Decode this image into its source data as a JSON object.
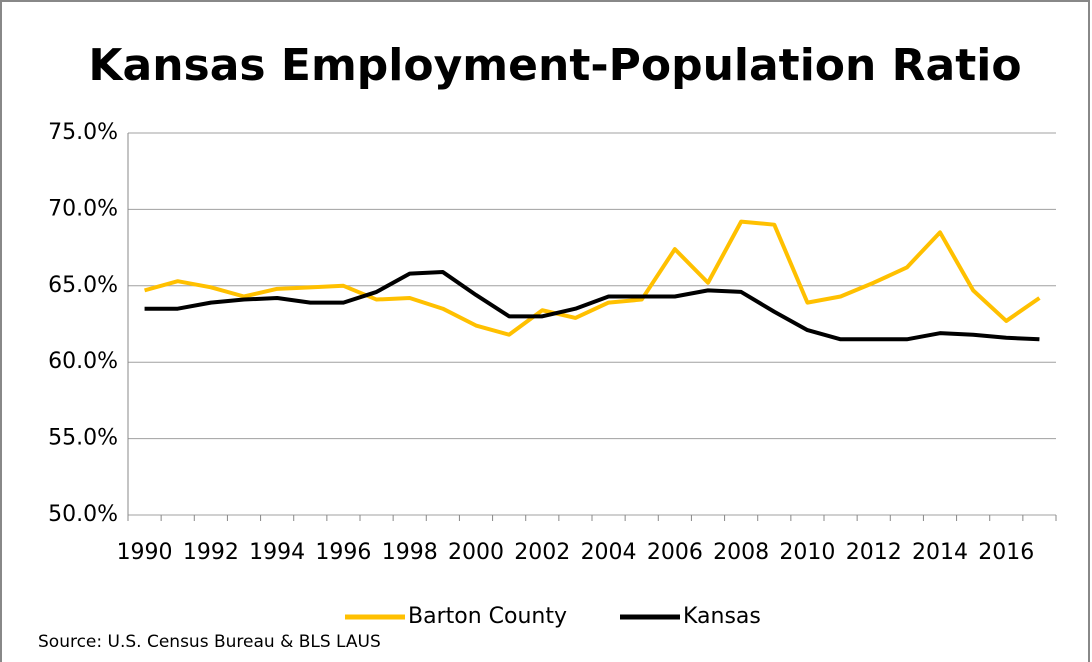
{
  "chart_data": {
    "type": "line",
    "title": "Kansas Employment-Population Ratio",
    "source": "Source: U.S. Census Bureau  & BLS LAUS",
    "categories": [
      "1990",
      null,
      "1992",
      null,
      "1994",
      null,
      "1996",
      null,
      "1998",
      null,
      "2000",
      null,
      "2002",
      null,
      "2004",
      null,
      "2006",
      null,
      "2008",
      null,
      "2010",
      null,
      "2012",
      null,
      "2014",
      null,
      "2016",
      null
    ],
    "series": [
      {
        "name": "Barton County",
        "color": "#ffc000",
        "values": [
          64.7,
          65.3,
          64.9,
          64.3,
          64.8,
          64.9,
          65.0,
          64.1,
          64.2,
          63.5,
          62.4,
          61.8,
          63.4,
          62.9,
          63.9,
          64.1,
          67.4,
          65.2,
          69.2,
          69.0,
          63.9,
          64.3,
          65.2,
          66.2,
          68.5,
          64.7,
          62.7,
          64.2
        ]
      },
      {
        "name": "Kansas",
        "color": "#000000",
        "values": [
          63.5,
          63.5,
          63.9,
          64.1,
          64.2,
          63.9,
          63.9,
          64.6,
          65.8,
          65.9,
          64.4,
          63.0,
          63.0,
          63.5,
          64.3,
          64.3,
          64.3,
          64.7,
          64.6,
          63.3,
          62.1,
          61.5,
          61.5,
          61.5,
          61.9,
          61.8,
          61.6,
          61.5
        ]
      }
    ],
    "ylim": [
      50,
      75
    ],
    "yticks": [
      {
        "value": 50,
        "label": "50.0%"
      },
      {
        "value": 55,
        "label": "55.0%"
      },
      {
        "value": 60,
        "label": "60.0%"
      },
      {
        "value": 65,
        "label": "65.0%"
      },
      {
        "value": 70,
        "label": "70.0%"
      },
      {
        "value": 75,
        "label": "75.0%"
      }
    ],
    "grid": true,
    "legend": "bottom"
  }
}
